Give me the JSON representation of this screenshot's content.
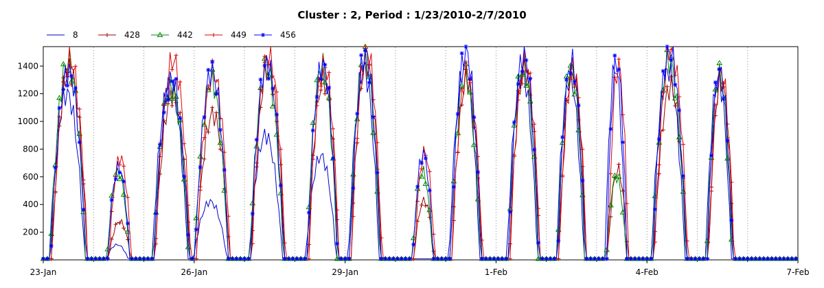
{
  "chart_data": {
    "type": "line",
    "title": "Cluster : 2, Period : 1/23/2010-2/7/2010",
    "xlabel": "",
    "ylabel": "",
    "x_tick_labels": [
      "23-Jan",
      "26-Jan",
      "29-Jan",
      "1-Feb",
      "4-Feb",
      "7-Feb"
    ],
    "x_tick_days": [
      0,
      3,
      6,
      9,
      12,
      15
    ],
    "xlim_days": [
      0,
      15
    ],
    "ylim": [
      0,
      1540
    ],
    "y_ticks": [
      200,
      400,
      600,
      800,
      1000,
      1200,
      1400
    ],
    "grid": {
      "vertical_dotted_daily": true,
      "horizontal": false
    },
    "legend_position": "top-left",
    "series": [
      {
        "name": "8",
        "color": "#0000cc",
        "marker": "none",
        "peaks": [
          1200,
          110,
          1280,
          420,
          900,
          750,
          1380,
          0,
          1390,
          1350,
          1320,
          1400,
          1370,
          1310
        ]
      },
      {
        "name": "428",
        "color": "#990000",
        "marker": "tick",
        "peaks": [
          1380,
          280,
          1200,
          1050,
          1390,
          1300,
          1420,
          430,
          1300,
          1380,
          1340,
          650,
          1250,
          1300
        ]
      },
      {
        "name": "442",
        "color": "#008800",
        "marker": "triangle",
        "peaks": [
          1430,
          640,
          1250,
          1290,
          1380,
          1400,
          1460,
          640,
          1320,
          1400,
          1380,
          600,
          1440,
          1330
        ]
      },
      {
        "name": "449",
        "color": "#dd0000",
        "marker": "plus",
        "peaks": [
          1450,
          740,
          1440,
          1350,
          1490,
          1410,
          1520,
          780,
          1360,
          1420,
          1380,
          1400,
          1530,
          1350
        ]
      },
      {
        "name": "456",
        "color": "#0000ff",
        "marker": "star",
        "peaks": [
          1360,
          670,
          1300,
          1360,
          1420,
          1410,
          1480,
          770,
          1500,
          1480,
          1430,
          1430,
          1520,
          1360
        ]
      }
    ],
    "day_peak_centers": [
      1.5,
      3.0,
      4.9,
      6.2,
      7.3,
      8.4,
      9.7,
      11.1,
      12.3,
      13.3,
      14.3,
      0,
      0,
      0
    ]
  }
}
